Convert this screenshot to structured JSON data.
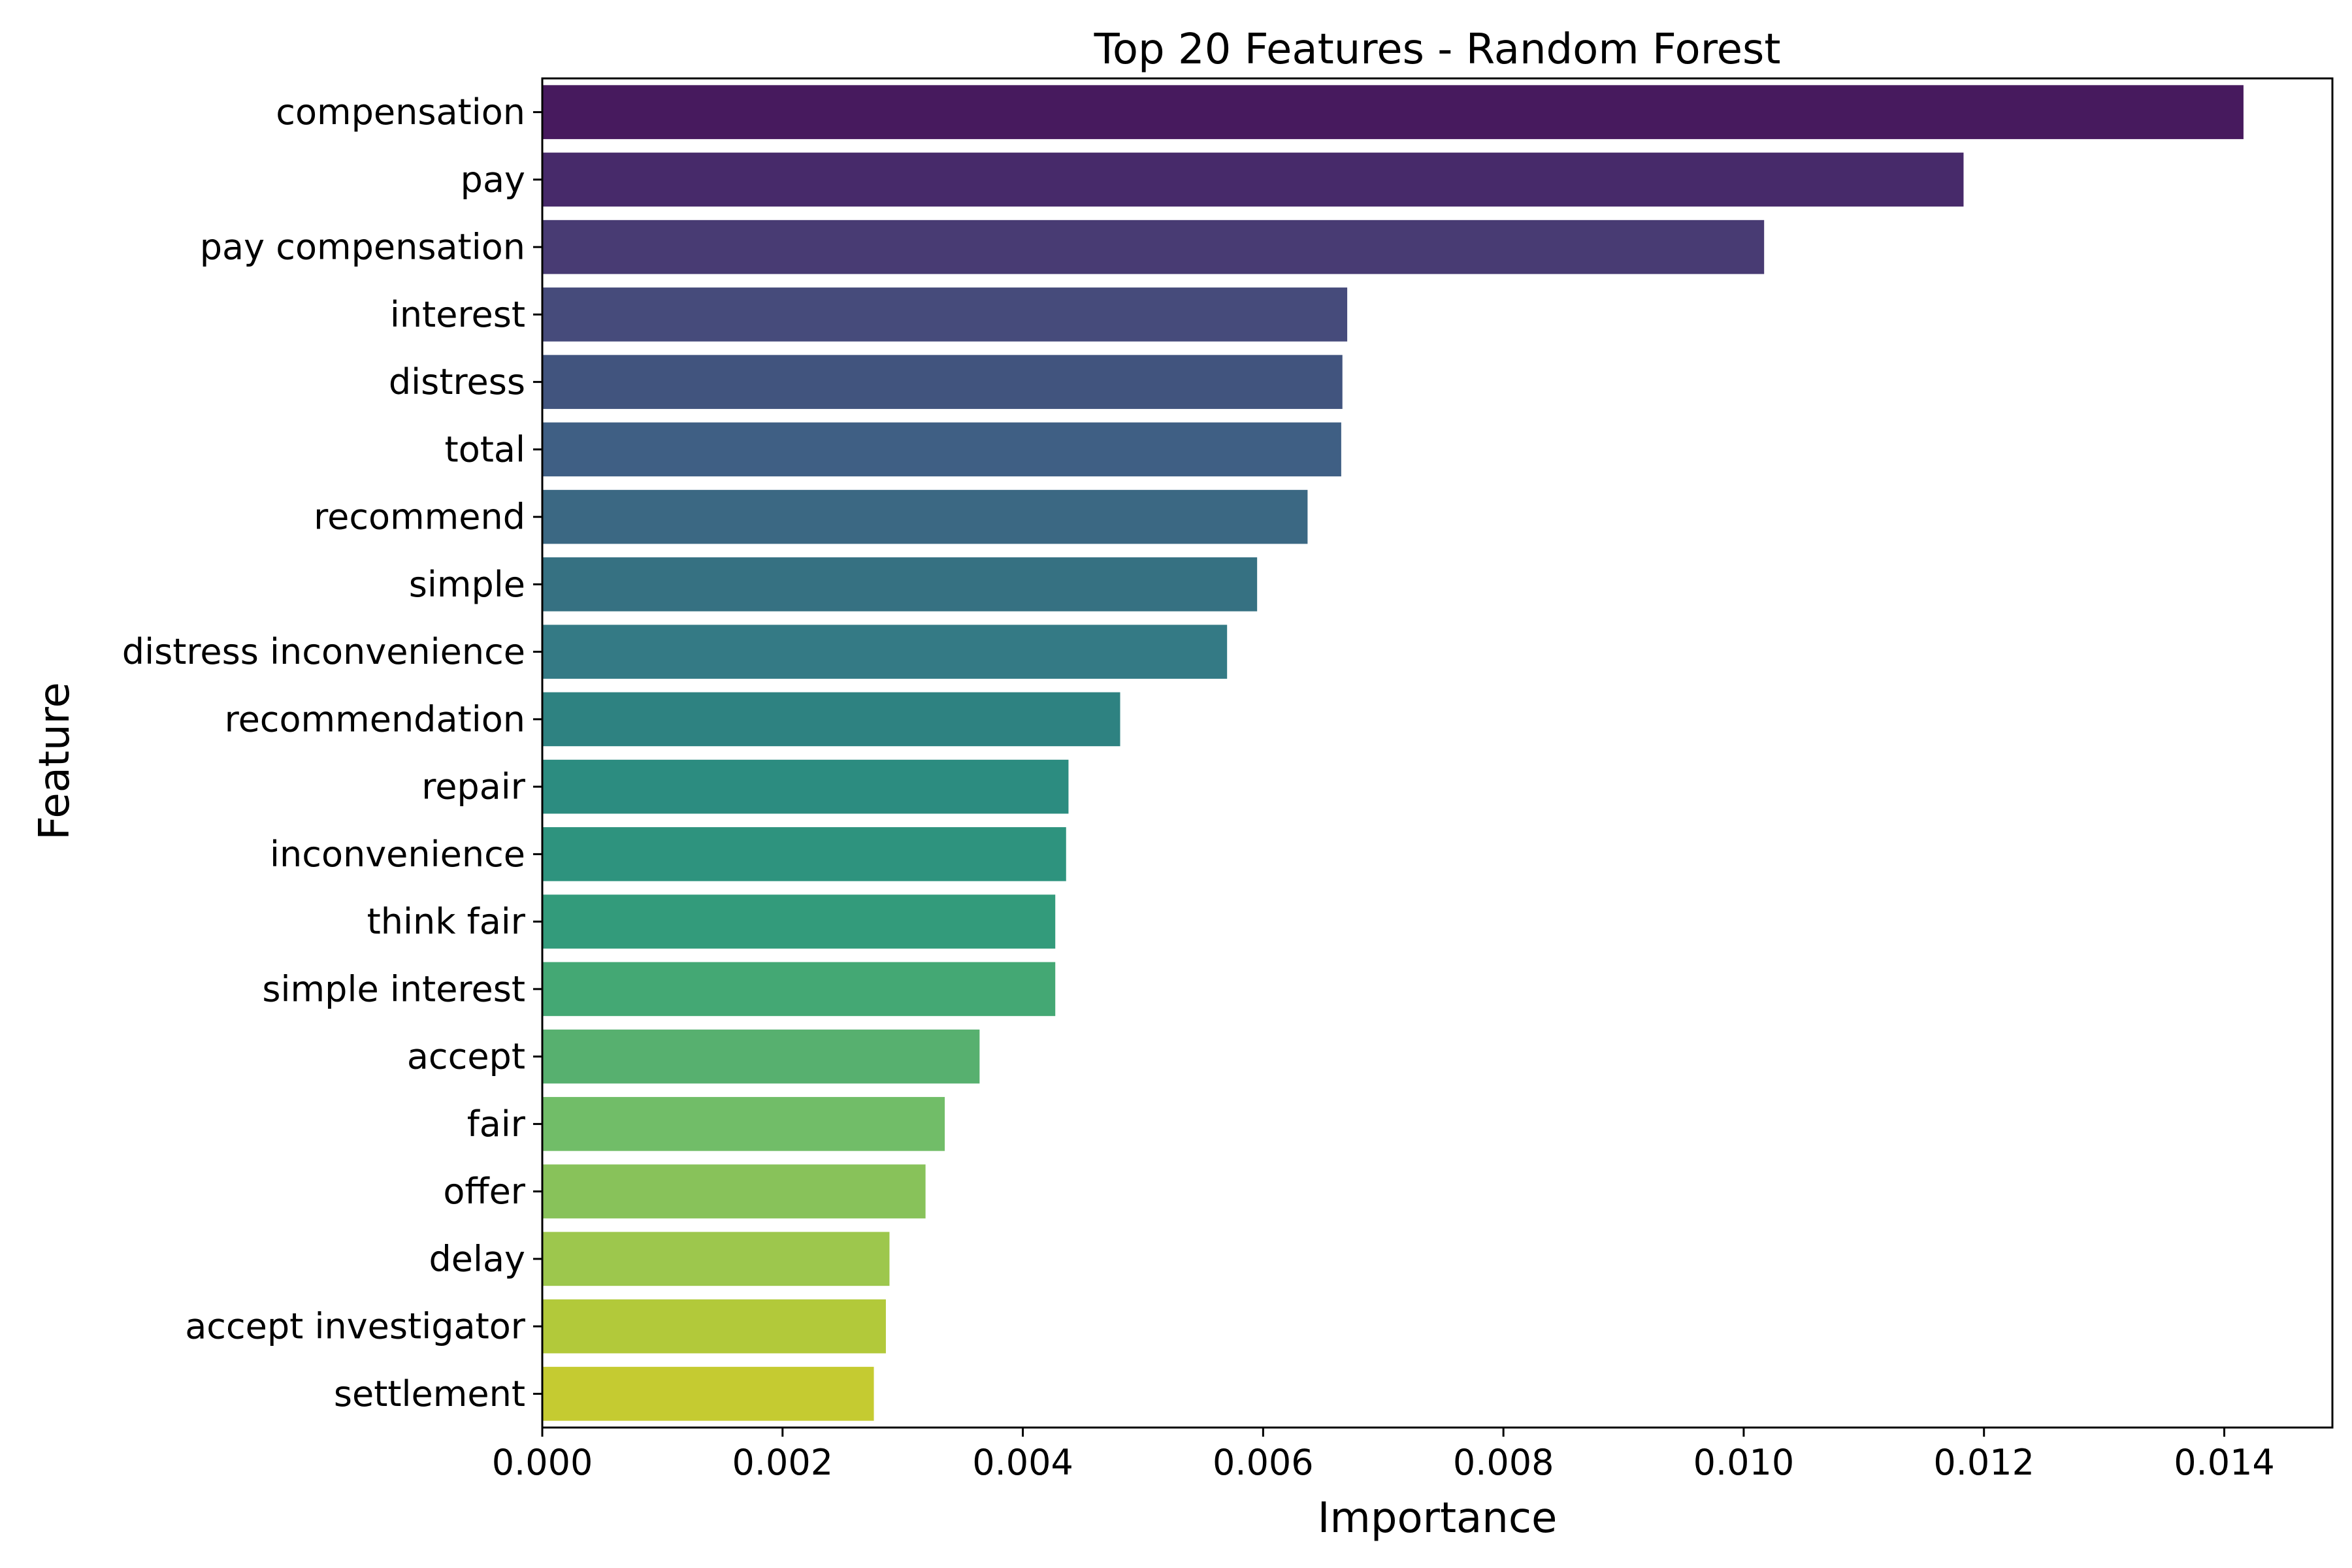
{
  "chart_data": {
    "type": "bar",
    "orientation": "horizontal",
    "title": "Top 20 Features - Random Forest",
    "xlabel": "Importance",
    "ylabel": "Feature",
    "xlim": [
      0,
      0.0149
    ],
    "xticks": [
      0.0,
      0.002,
      0.004,
      0.006,
      0.008,
      0.01,
      0.012,
      0.014
    ],
    "xtick_labels": [
      "0.000",
      "0.002",
      "0.004",
      "0.006",
      "0.008",
      "0.010",
      "0.012",
      "0.014"
    ],
    "grid": false,
    "colormap": "viridis",
    "categories": [
      "compensation",
      "pay",
      "pay compensation",
      "interest",
      "distress",
      "total",
      "recommend",
      "simple",
      "distress inconvenience",
      "recommendation",
      "repair",
      "inconvenience",
      "think fair",
      "simple interest",
      "accept",
      "fair",
      "offer",
      "delay",
      "accept investigator",
      "settlement"
    ],
    "values": [
      0.01416,
      0.01183,
      0.01017,
      0.0067,
      0.00666,
      0.00665,
      0.00637,
      0.00595,
      0.0057,
      0.00481,
      0.00438,
      0.00436,
      0.00427,
      0.00427,
      0.00364,
      0.00335,
      0.00319,
      0.00289,
      0.00286,
      0.00276
    ],
    "colors": [
      "#471a5e",
      "#472a6a",
      "#483b73",
      "#464b7b",
      "#41547e",
      "#3f5f84",
      "#3b6883",
      "#367182",
      "#347a85",
      "#2e8281",
      "#2c8c80",
      "#2e937e",
      "#339b7b",
      "#44a874",
      "#57b06f",
      "#71bd68",
      "#88c25a",
      "#9dc74d",
      "#b2c93a",
      "#c5cb31"
    ]
  }
}
